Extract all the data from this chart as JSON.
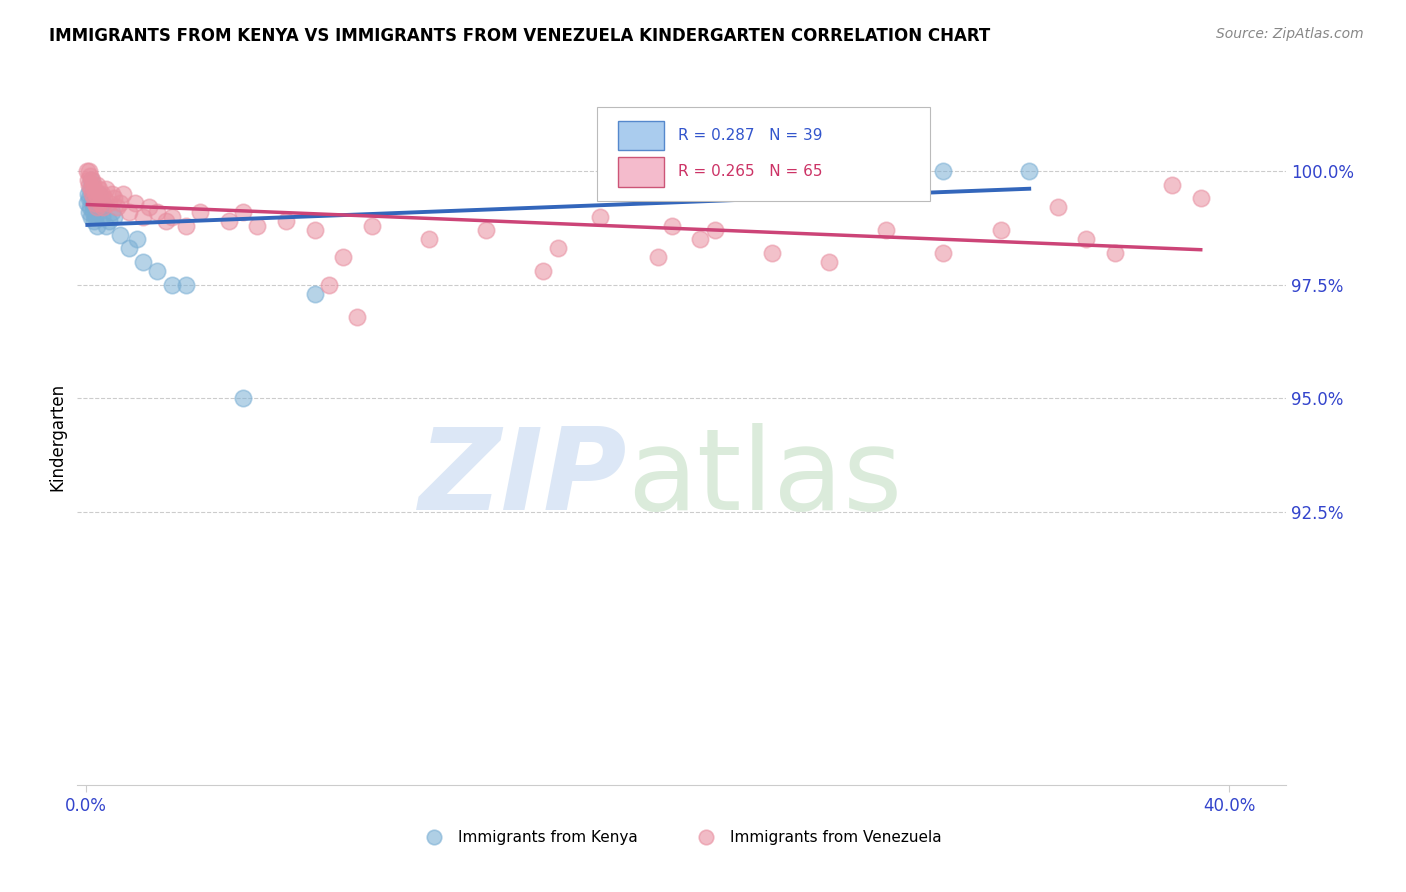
{
  "title": "IMMIGRANTS FROM KENYA VS IMMIGRANTS FROM VENEZUELA KINDERGARTEN CORRELATION CHART",
  "source": "Source: ZipAtlas.com",
  "ylabel": "Kindergarten",
  "y_ticks": [
    92.5,
    95.0,
    97.5,
    100.0
  ],
  "y_tick_labels": [
    "92.5%",
    "95.0%",
    "97.5%",
    "100.0%"
  ],
  "xlim_min": -0.3,
  "xlim_max": 42.0,
  "ylim_min": 86.5,
  "ylim_max": 101.8,
  "kenya_color": "#7bafd4",
  "kenya_trend_color": "#3366bb",
  "venezuela_color": "#e88fa0",
  "venezuela_trend_color": "#cc4477",
  "kenya_R": 0.287,
  "kenya_N": 39,
  "venezuela_R": 0.265,
  "venezuela_N": 65,
  "legend_label_kenya": "Immigrants from Kenya",
  "legend_label_venezuela": "Immigrants from Venezuela",
  "axis_tick_color": "#3344cc",
  "title_fontsize": 12,
  "source_fontsize": 10,
  "tick_fontsize": 12,
  "kenya_scatter_x": [
    0.05,
    0.08,
    0.1,
    0.12,
    0.14,
    0.15,
    0.17,
    0.18,
    0.2,
    0.22,
    0.25,
    0.27,
    0.3,
    0.32,
    0.35,
    0.38,
    0.4,
    0.42,
    0.45,
    0.5,
    0.55,
    0.6,
    0.7,
    0.8,
    0.9,
    1.0,
    1.2,
    1.5,
    2.0,
    2.5,
    3.0,
    5.5,
    8.0,
    20.0,
    25.0,
    30.0,
    33.0,
    3.5,
    1.8
  ],
  "kenya_scatter_y": [
    99.3,
    99.5,
    99.1,
    99.4,
    99.6,
    99.2,
    99.8,
    99.0,
    99.4,
    99.3,
    99.1,
    98.9,
    99.2,
    99.0,
    99.4,
    98.8,
    99.3,
    99.1,
    99.5,
    99.2,
    99.0,
    99.3,
    98.8,
    98.9,
    99.1,
    99.0,
    98.6,
    98.3,
    98.0,
    97.8,
    97.5,
    95.0,
    97.3,
    99.5,
    100.1,
    100.0,
    100.0,
    97.5,
    98.5
  ],
  "venezuela_scatter_x": [
    0.05,
    0.08,
    0.1,
    0.12,
    0.15,
    0.18,
    0.2,
    0.22,
    0.25,
    0.28,
    0.3,
    0.32,
    0.35,
    0.38,
    0.4,
    0.42,
    0.45,
    0.5,
    0.55,
    0.6,
    0.65,
    0.7,
    0.8,
    0.9,
    1.0,
    1.1,
    1.2,
    1.3,
    1.5,
    1.7,
    2.0,
    2.2,
    2.5,
    2.8,
    3.0,
    3.5,
    4.0,
    5.0,
    5.5,
    6.0,
    7.0,
    8.0,
    9.0,
    10.0,
    12.0,
    14.0,
    16.0,
    18.0,
    20.0,
    22.0,
    24.0,
    26.0,
    28.0,
    30.0,
    32.0,
    34.0,
    35.0,
    36.0,
    38.0,
    39.0,
    20.5,
    21.5,
    8.5,
    9.5,
    16.5
  ],
  "venezuela_scatter_y": [
    100.0,
    99.8,
    100.0,
    99.7,
    99.9,
    99.6,
    99.8,
    99.5,
    99.7,
    99.4,
    99.6,
    99.3,
    99.5,
    99.2,
    99.7,
    99.4,
    99.6,
    99.3,
    99.5,
    99.2,
    99.4,
    99.6,
    99.3,
    99.5,
    99.4,
    99.2,
    99.3,
    99.5,
    99.1,
    99.3,
    99.0,
    99.2,
    99.1,
    98.9,
    99.0,
    98.8,
    99.1,
    98.9,
    99.1,
    98.8,
    98.9,
    98.7,
    98.1,
    98.8,
    98.5,
    98.7,
    97.8,
    99.0,
    98.1,
    98.7,
    98.2,
    98.0,
    98.7,
    98.2,
    98.7,
    99.2,
    98.5,
    98.2,
    99.7,
    99.4,
    98.8,
    98.5,
    97.5,
    96.8,
    98.3
  ]
}
